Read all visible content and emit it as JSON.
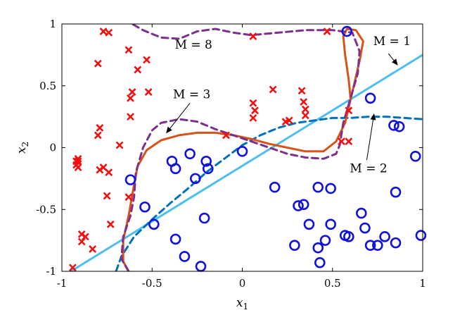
{
  "chart_data": {
    "type": "scatter",
    "xlabel": "x",
    "xlabel_sub": "1",
    "ylabel": "x",
    "ylabel_sub": "2",
    "xlim": [
      -1,
      1
    ],
    "ylim": [
      -1,
      1
    ],
    "xticks": [
      -1,
      -0.5,
      0,
      0.5,
      1
    ],
    "xtick_labels": [
      "-1",
      "-0.5",
      "0",
      "0.5",
      "1"
    ],
    "yticks": [
      -1,
      -0.5,
      0,
      0.5,
      1
    ],
    "ytick_labels": [
      "-1",
      "-0.5",
      "0",
      "0.5",
      "1"
    ],
    "grid": false,
    "colors": {
      "cross": "#ee1111",
      "circle": "#1111dd",
      "m1": "#4dbeee",
      "m2": "#0072bd",
      "m3": "#d95319",
      "m8": "#7e2f8e"
    },
    "series": [
      {
        "marker": "cross",
        "points": [
          [
            -0.94,
            -0.97
          ],
          [
            -0.92,
            -0.11
          ],
          [
            -0.92,
            -0.14
          ],
          [
            -0.91,
            -0.11
          ],
          [
            -0.91,
            -0.16
          ],
          [
            -0.89,
            -0.76
          ],
          [
            -0.89,
            -0.7
          ],
          [
            -0.87,
            -0.72
          ],
          [
            -0.83,
            -0.82
          ],
          [
            -0.8,
            0.68
          ],
          [
            -0.8,
            0.1
          ],
          [
            -0.79,
            0.16
          ],
          [
            -0.79,
            -0.18
          ],
          [
            -0.77,
            0.94
          ],
          [
            -0.77,
            -0.16
          ],
          [
            -0.75,
            -0.39
          ],
          [
            -0.74,
            0.93
          ],
          [
            -0.74,
            -0.2
          ],
          [
            -0.73,
            -0.62
          ],
          [
            -0.68,
            0.02
          ],
          [
            -0.63,
            0.79
          ],
          [
            -0.62,
            0.25
          ],
          [
            -0.62,
            0.4
          ],
          [
            -0.61,
            0.45
          ],
          [
            -0.58,
            0.63
          ],
          [
            -0.53,
            0.71
          ],
          [
            -0.52,
            0.45
          ],
          [
            -0.09,
            0.1
          ],
          [
            0.06,
            0.9
          ],
          [
            0.06,
            0.36
          ],
          [
            0.07,
            0.3
          ],
          [
            0.06,
            0.24
          ],
          [
            0.17,
            0.47
          ],
          [
            0.24,
            0.21
          ],
          [
            0.26,
            0.22
          ],
          [
            0.33,
            0.46
          ],
          [
            0.35,
            0.26
          ],
          [
            0.35,
            0.31
          ],
          [
            0.34,
            0.37
          ],
          [
            0.47,
            0.94
          ],
          [
            0.55,
            0.05
          ],
          [
            0.59,
            0.3
          ],
          [
            0.59,
            0.05
          ],
          [
            -0.63,
            -0.4
          ],
          [
            -0.91,
            -0.09
          ]
        ]
      },
      {
        "marker": "circle",
        "points": [
          [
            0.58,
            0.94
          ],
          [
            0.71,
            0.4
          ],
          [
            0.84,
            0.18
          ],
          [
            0.96,
            -0.07
          ],
          [
            0.99,
            -0.71
          ],
          [
            0.85,
            -0.36
          ],
          [
            0.85,
            -0.77
          ],
          [
            -0.62,
            -0.26
          ],
          [
            -0.39,
            -0.11
          ],
          [
            -0.37,
            -0.17
          ],
          [
            -0.29,
            -0.05
          ],
          [
            -0.2,
            -0.11
          ],
          [
            -0.26,
            -0.25
          ],
          [
            -0.19,
            -0.17
          ],
          [
            0.0,
            -0.03
          ],
          [
            -0.54,
            -0.48
          ],
          [
            -0.49,
            -0.62
          ],
          [
            -0.37,
            -0.74
          ],
          [
            -0.21,
            -0.57
          ],
          [
            -0.32,
            -0.88
          ],
          [
            -0.23,
            -0.96
          ],
          [
            0.18,
            -0.32
          ],
          [
            0.31,
            -0.47
          ],
          [
            0.34,
            -0.46
          ],
          [
            0.37,
            -0.62
          ],
          [
            0.42,
            -0.32
          ],
          [
            0.49,
            -0.33
          ],
          [
            0.49,
            -0.62
          ],
          [
            0.59,
            -0.72
          ],
          [
            0.57,
            -0.71
          ],
          [
            0.66,
            -0.53
          ],
          [
            0.68,
            -0.65
          ],
          [
            0.71,
            -0.79
          ],
          [
            0.75,
            -0.79
          ],
          [
            0.79,
            -0.72
          ],
          [
            0.29,
            -0.79
          ],
          [
            0.42,
            -0.81
          ],
          [
            0.46,
            -0.75
          ],
          [
            0.43,
            -0.93
          ],
          [
            0.87,
            0.17
          ]
        ]
      }
    ],
    "curves": [
      {
        "name": "M = 1",
        "style": "solid",
        "points": [
          [
            -0.95,
            -1.0
          ],
          [
            1.0,
            0.75
          ]
        ]
      },
      {
        "name": "M = 2",
        "style": "dashed",
        "points": [
          [
            -0.7,
            -1.0
          ],
          [
            -0.67,
            -0.88
          ],
          [
            -0.6,
            -0.72
          ],
          [
            -0.5,
            -0.58
          ],
          [
            -0.4,
            -0.45
          ],
          [
            -0.3,
            -0.33
          ],
          [
            -0.2,
            -0.2
          ],
          [
            -0.1,
            -0.09
          ],
          [
            0.0,
            0.02
          ],
          [
            0.1,
            0.1
          ],
          [
            0.2,
            0.16
          ],
          [
            0.3,
            0.2
          ],
          [
            0.4,
            0.22
          ],
          [
            0.5,
            0.24
          ],
          [
            0.6,
            0.24
          ],
          [
            0.7,
            0.25
          ],
          [
            0.8,
            0.25
          ],
          [
            0.9,
            0.24
          ],
          [
            1.0,
            0.23
          ]
        ]
      },
      {
        "name": "M = 3",
        "style": "solid",
        "points": [
          [
            -0.63,
            -1.0
          ],
          [
            -0.66,
            -0.92
          ],
          [
            -0.66,
            -0.75
          ],
          [
            -0.63,
            -0.55
          ],
          [
            -0.6,
            -0.3
          ],
          [
            -0.58,
            -0.15
          ],
          [
            -0.53,
            -0.02
          ],
          [
            -0.45,
            0.06
          ],
          [
            -0.35,
            0.1
          ],
          [
            -0.25,
            0.12
          ],
          [
            -0.15,
            0.12
          ],
          [
            -0.05,
            0.1
          ],
          [
            0.05,
            0.07
          ],
          [
            0.15,
            0.03
          ],
          [
            0.25,
            0.0
          ],
          [
            0.35,
            -0.03
          ],
          [
            0.45,
            -0.03
          ],
          [
            0.52,
            0.05
          ],
          [
            0.57,
            0.2
          ],
          [
            0.61,
            0.45
          ],
          [
            0.65,
            0.7
          ],
          [
            0.67,
            0.86
          ],
          [
            0.63,
            0.95
          ],
          [
            0.58,
            0.96
          ],
          [
            0.56,
            0.9
          ],
          [
            0.57,
            0.75
          ],
          [
            0.59,
            0.55
          ],
          [
            0.6,
            0.4
          ]
        ]
      },
      {
        "name": "M = 8",
        "style": "dashed",
        "points": [
          [
            -0.63,
            -1.0
          ],
          [
            -0.67,
            -0.9
          ],
          [
            -0.66,
            -0.72
          ],
          [
            -0.62,
            -0.55
          ],
          [
            -0.6,
            -0.4
          ],
          [
            -0.59,
            -0.2
          ],
          [
            -0.55,
            0.0
          ],
          [
            -0.5,
            0.14
          ],
          [
            -0.45,
            0.2
          ],
          [
            -0.35,
            0.23
          ],
          [
            -0.25,
            0.21
          ],
          [
            -0.15,
            0.15
          ],
          [
            -0.05,
            0.1
          ],
          [
            0.05,
            0.05
          ],
          [
            0.15,
            0.0
          ],
          [
            0.25,
            -0.05
          ],
          [
            0.35,
            -0.08
          ],
          [
            0.45,
            -0.09
          ],
          [
            0.52,
            -0.05
          ],
          [
            0.54,
            0.02
          ],
          [
            0.56,
            0.2
          ],
          [
            0.6,
            0.4
          ],
          [
            0.64,
            0.6
          ],
          [
            0.65,
            0.78
          ],
          [
            0.61,
            0.93
          ],
          [
            0.5,
            0.95
          ],
          [
            0.35,
            0.95
          ],
          [
            0.2,
            0.93
          ],
          [
            0.05,
            0.91
          ],
          [
            -0.05,
            0.93
          ],
          [
            -0.15,
            0.96
          ],
          [
            -0.25,
            0.94
          ],
          [
            -0.35,
            0.88
          ],
          [
            -0.45,
            0.89
          ],
          [
            -0.55,
            0.95
          ],
          [
            -0.61,
            1.0
          ]
        ]
      }
    ],
    "annotations": [
      {
        "text": "M = 1",
        "label_at": [
          0.83,
          0.83
        ],
        "arrow_from": [
          0.81,
          0.76
        ],
        "arrow_to": [
          0.86,
          0.67
        ]
      },
      {
        "text": "M = 2",
        "label_at": [
          0.7,
          -0.2
        ],
        "arrow_from": [
          0.69,
          -0.1
        ],
        "arrow_to": [
          0.73,
          0.27
        ]
      },
      {
        "text": "M = 3",
        "label_at": [
          -0.28,
          0.4
        ],
        "arrow_from": [
          -0.29,
          0.36
        ],
        "arrow_to": [
          -0.42,
          0.12
        ]
      },
      {
        "text": "M = 8",
        "label_at": [
          -0.27,
          0.8
        ],
        "arrow_from": null,
        "arrow_to": null
      }
    ]
  }
}
